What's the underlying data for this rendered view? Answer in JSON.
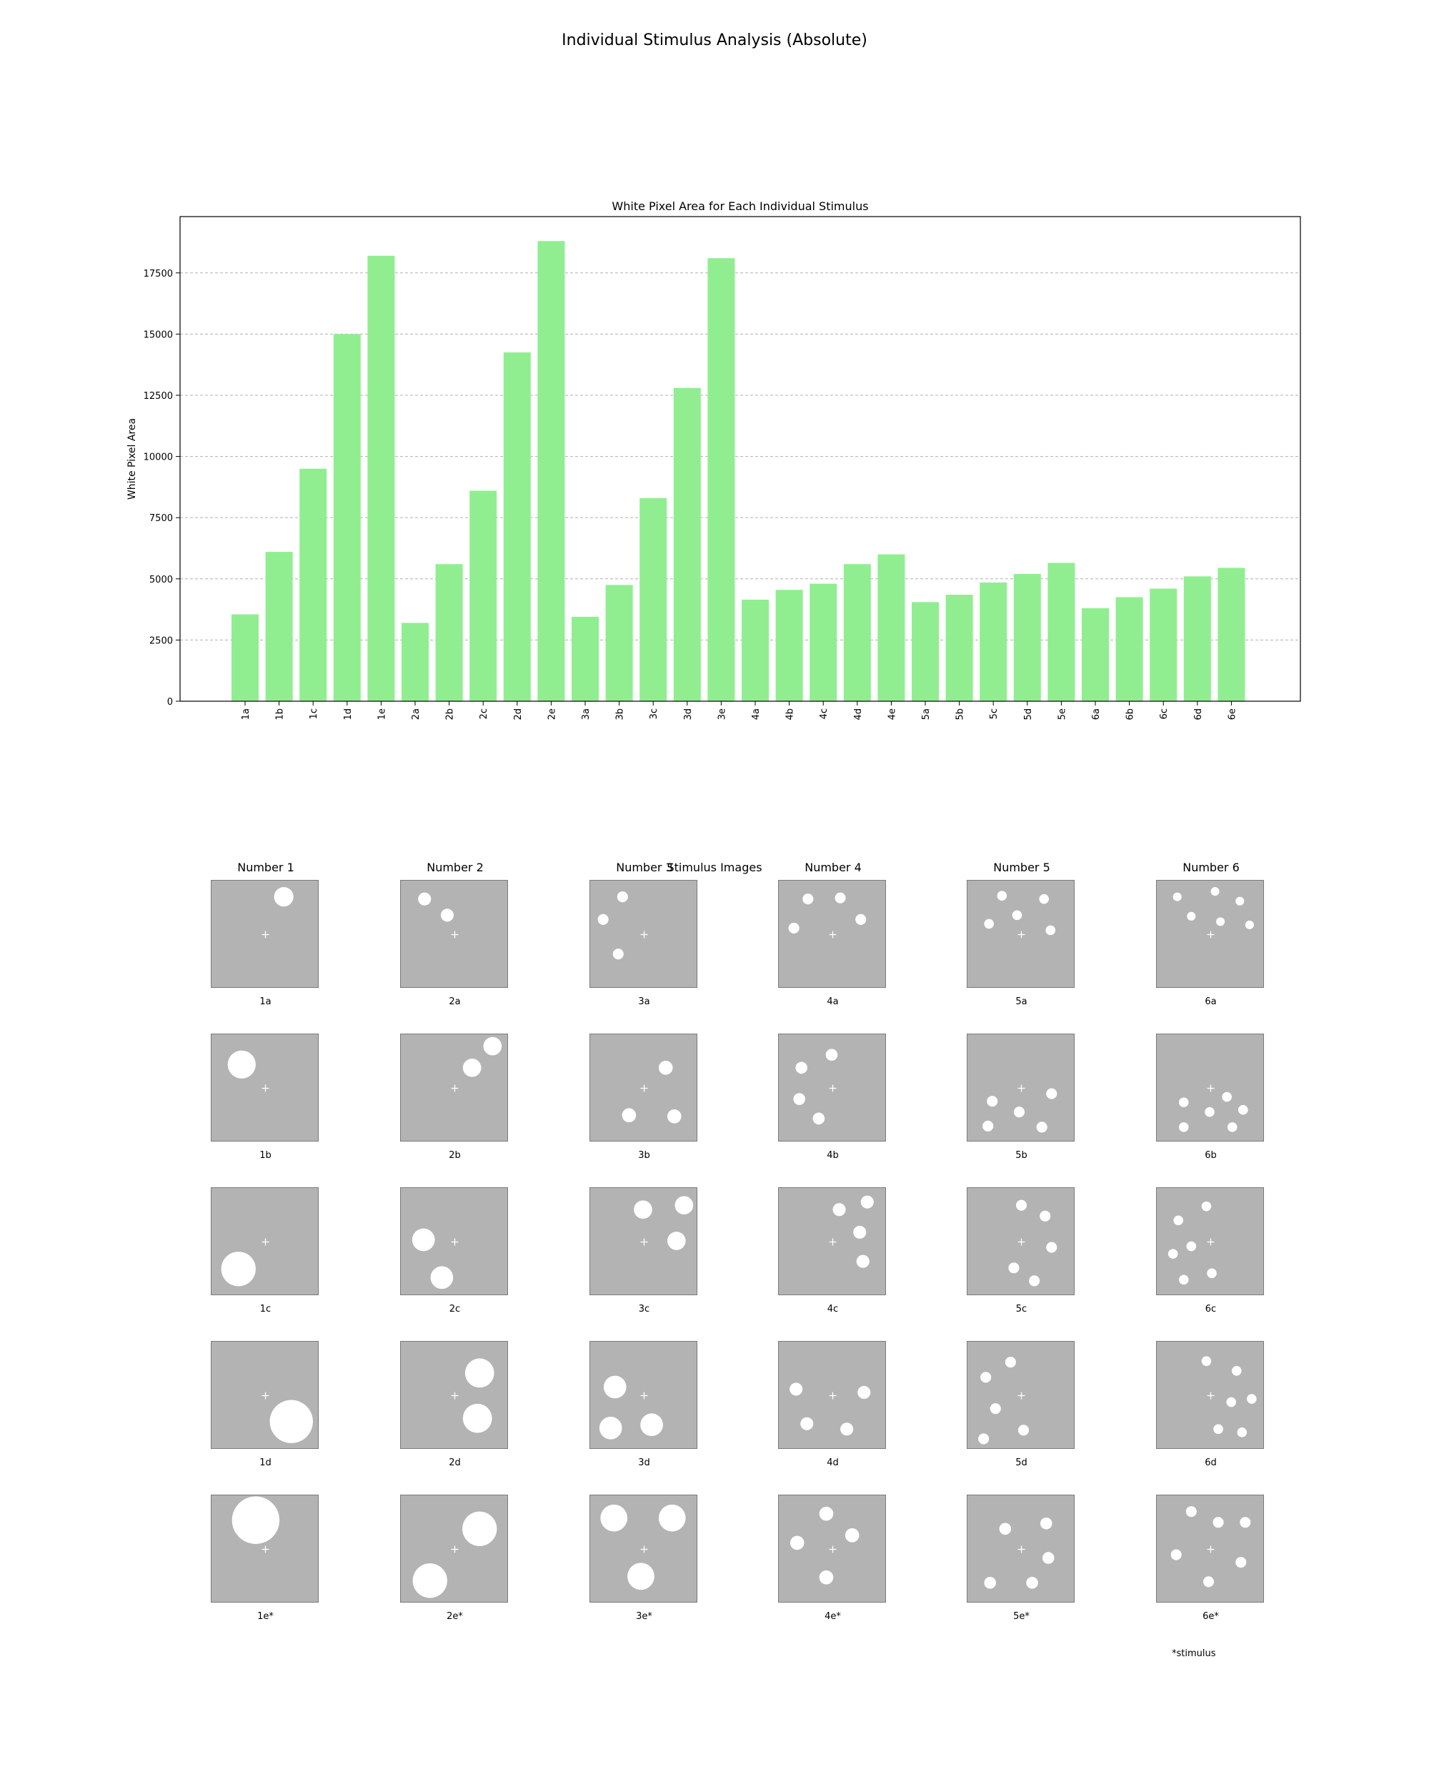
{
  "figure": {
    "suptitle": "Individual Stimulus Analysis (Absolute)",
    "grid_title": "Stimulus Images",
    "footnote": "*stimulus",
    "bar_color": "#90ee90",
    "stimulus_background_color": "#b3b3b3"
  },
  "chart_data": {
    "type": "bar",
    "title": "White Pixel Area for Each Individual Stimulus",
    "xlabel": "",
    "ylabel": "White Pixel Area",
    "ylim": [
      0,
      19800
    ],
    "yticks": [
      0,
      2500,
      5000,
      7500,
      10000,
      12500,
      15000,
      17500
    ],
    "grid": "y-dashed",
    "categories": [
      "1a",
      "1b",
      "1c",
      "1d",
      "1e",
      "2a",
      "2b",
      "2c",
      "2d",
      "2e",
      "3a",
      "3b",
      "3c",
      "3d",
      "3e",
      "4a",
      "4b",
      "4c",
      "4d",
      "4e",
      "5a",
      "5b",
      "5c",
      "5d",
      "5e",
      "6a",
      "6b",
      "6c",
      "6d",
      "6e"
    ],
    "values": [
      3550,
      6100,
      9500,
      15000,
      18200,
      3200,
      5600,
      8600,
      14250,
      18800,
      3450,
      4750,
      8300,
      12800,
      18100,
      4150,
      4550,
      4800,
      5600,
      6000,
      4050,
      4350,
      4850,
      5200,
      5650,
      3800,
      4250,
      4600,
      5100,
      5450
    ]
  },
  "grid": {
    "columns": [
      "Number 1",
      "Number 2",
      "Number 3",
      "Number 4",
      "Number 5",
      "Number 6"
    ],
    "rows": [
      [
        "1a",
        "2a",
        "3a",
        "4a",
        "5a",
        "6a"
      ],
      [
        "1b",
        "2b",
        "3b",
        "4b",
        "5b",
        "6b"
      ],
      [
        "1c",
        "2c",
        "3c",
        "4c",
        "5c",
        "6c"
      ],
      [
        "1d",
        "2d",
        "3d",
        "4d",
        "5d",
        "6d"
      ],
      [
        "1e*",
        "2e*",
        "3e*",
        "4e*",
        "5e*",
        "6e*"
      ]
    ]
  }
}
